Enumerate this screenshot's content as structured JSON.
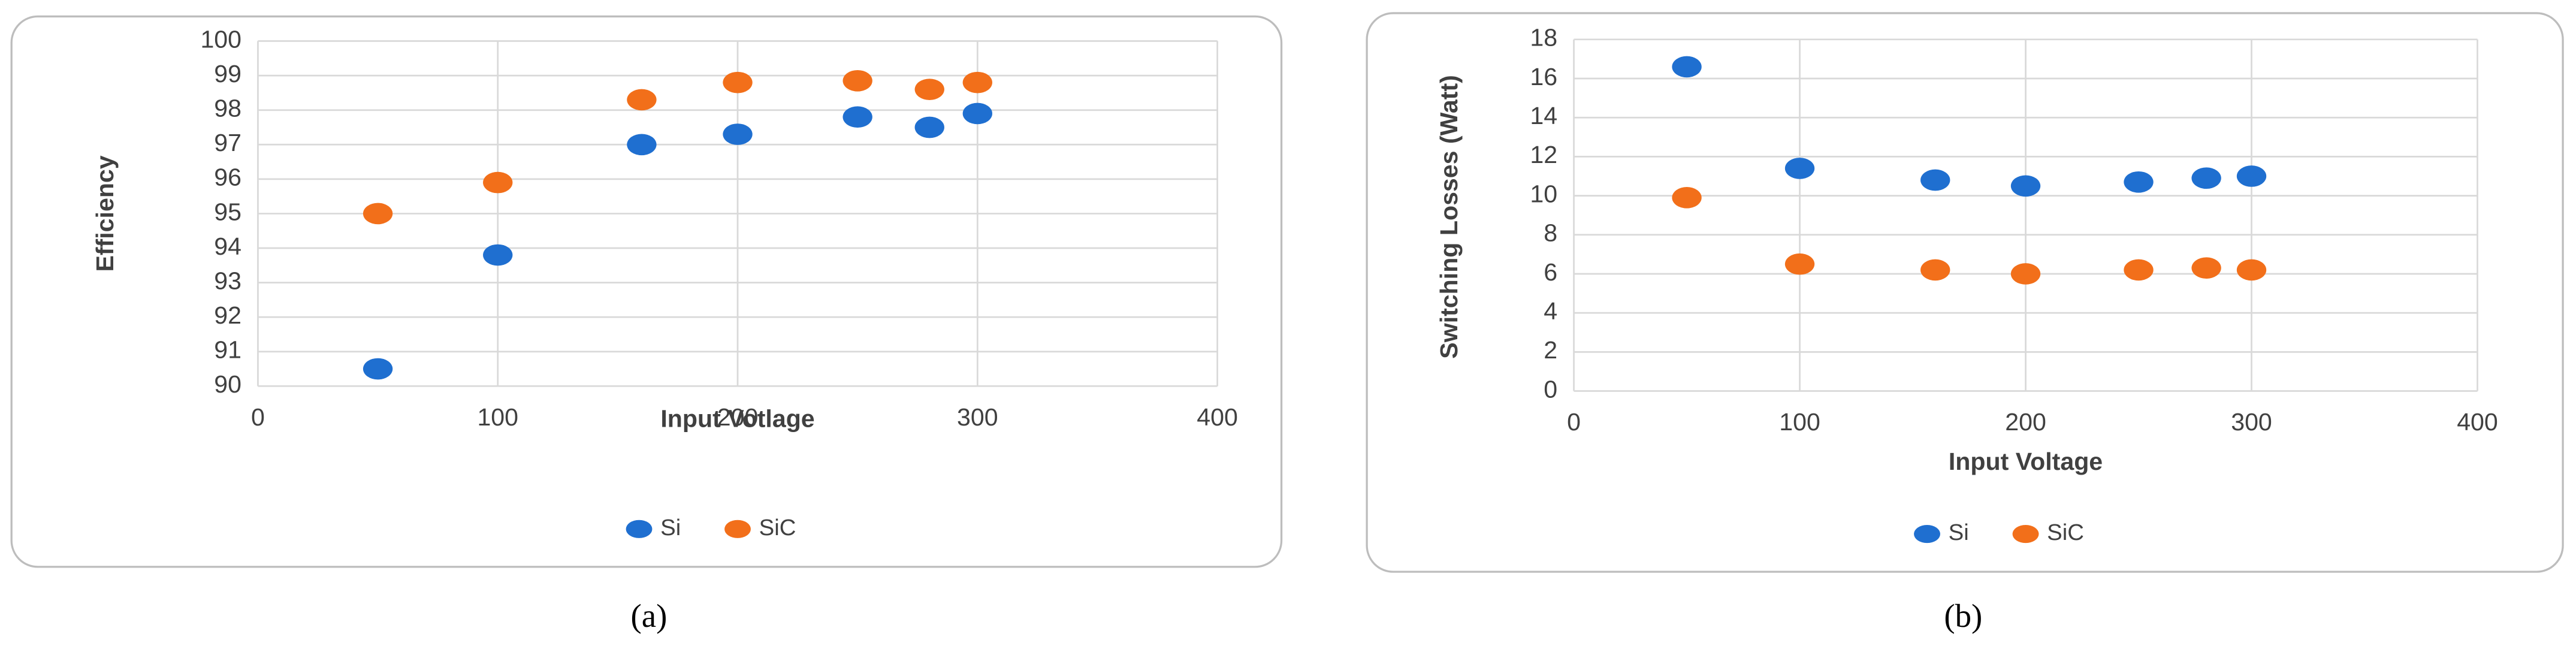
{
  "chart_data": [
    {
      "type": "scatter",
      "caption": "(a)",
      "xlabel": "Input Votlage",
      "ylabel": "Efficiency",
      "x": [
        50,
        100,
        160,
        200,
        250,
        280,
        300
      ],
      "series": [
        {
          "name": "Si",
          "color": "#1f6fd0",
          "values": [
            90.5,
            93.8,
            97.0,
            97.3,
            97.8,
            97.5,
            97.9
          ]
        },
        {
          "name": "SiC",
          "color": "#f26f1a",
          "values": [
            95.0,
            95.9,
            98.3,
            98.8,
            98.85,
            98.6,
            98.8
          ]
        }
      ],
      "xlim": [
        0,
        400
      ],
      "xticks": [
        0,
        100,
        200,
        300,
        400
      ],
      "ylim": [
        90,
        100
      ],
      "yticks": [
        90,
        91,
        92,
        93,
        94,
        95,
        96,
        97,
        98,
        99,
        100
      ],
      "grid": true,
      "legend": "bottom"
    },
    {
      "type": "scatter",
      "caption": "(b)",
      "xlabel": "Input Voltage",
      "ylabel": "Switching Losses (Watt)",
      "x": [
        50,
        100,
        160,
        200,
        250,
        280,
        300
      ],
      "series": [
        {
          "name": "Si",
          "color": "#1f6fd0",
          "values": [
            16.6,
            11.4,
            10.8,
            10.5,
            10.7,
            10.9,
            11.0
          ]
        },
        {
          "name": "SiC",
          "color": "#f26f1a",
          "values": [
            9.9,
            6.5,
            6.2,
            6.0,
            6.2,
            6.3,
            6.2
          ]
        }
      ],
      "xlim": [
        0,
        400
      ],
      "xticks": [
        0,
        100,
        200,
        300,
        400
      ],
      "ylim": [
        0,
        18
      ],
      "yticks": [
        0,
        2,
        4,
        6,
        8,
        10,
        12,
        14,
        16,
        18
      ],
      "grid": true,
      "legend": "bottom"
    }
  ]
}
